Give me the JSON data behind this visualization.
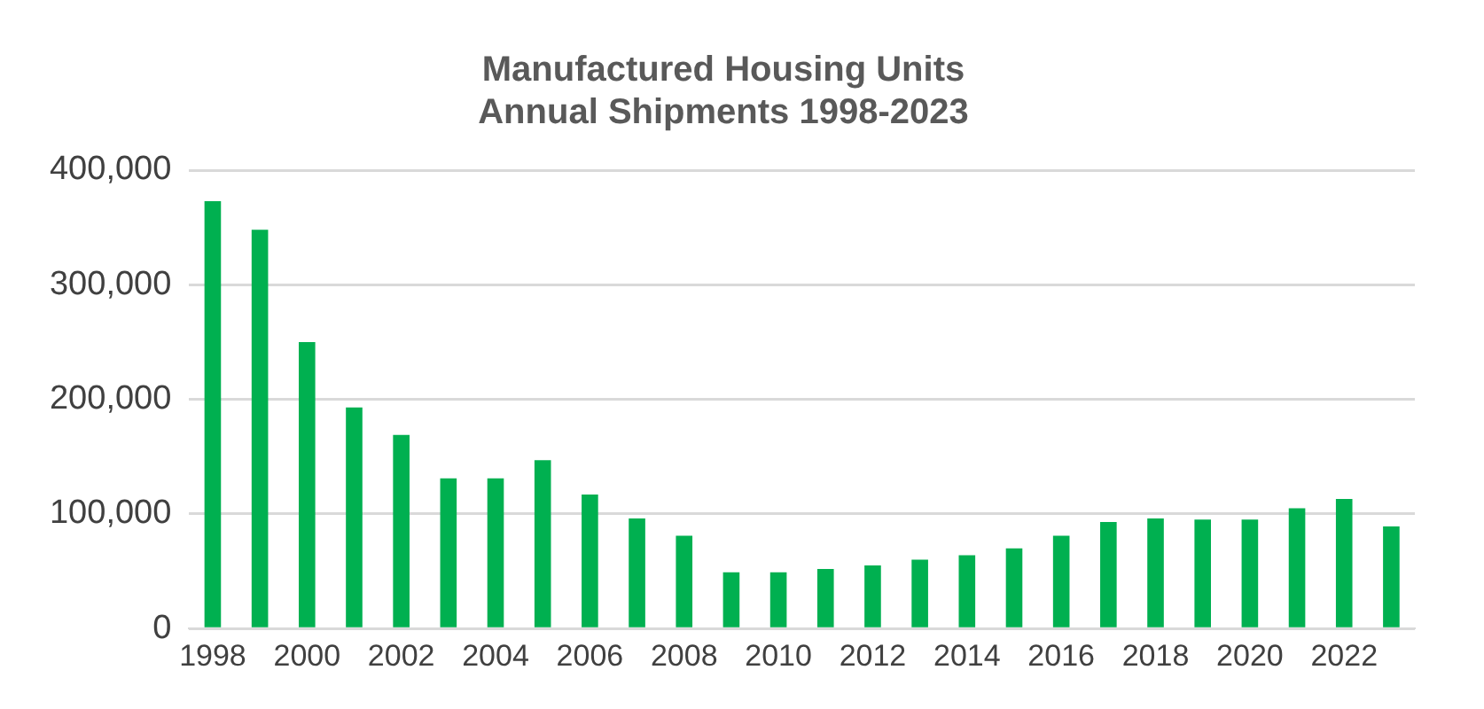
{
  "chart_data": {
    "type": "bar",
    "title": [
      "Manufactured Housing Units",
      "Annual Shipments 1998-2023"
    ],
    "categories": [
      "1998",
      null,
      "2000",
      null,
      "2002",
      null,
      "2004",
      null,
      "2006",
      null,
      "2008",
      null,
      "2010",
      null,
      "2012",
      null,
      "2014",
      null,
      "2016",
      null,
      "2018",
      null,
      "2020",
      null,
      "2022",
      null
    ],
    "values": [
      373000,
      348000,
      250000,
      193000,
      169000,
      131000,
      131000,
      147000,
      117000,
      96000,
      81000,
      49000,
      49000,
      52000,
      55000,
      60000,
      64000,
      70000,
      81000,
      93000,
      96000,
      95000,
      95000,
      105000,
      113000,
      89000
    ],
    "color": "#00b050",
    "ylim": [
      0,
      400000
    ],
    "yticks": [
      0,
      {
        "value": 100000,
        "label": "100,000"
      },
      {
        "value": 200000,
        "label": "200,000"
      },
      {
        "value": 300000,
        "label": "300,000"
      },
      {
        "value": 400000,
        "label": "400,000"
      }
    ],
    "grid": "y",
    "legend": false
  }
}
